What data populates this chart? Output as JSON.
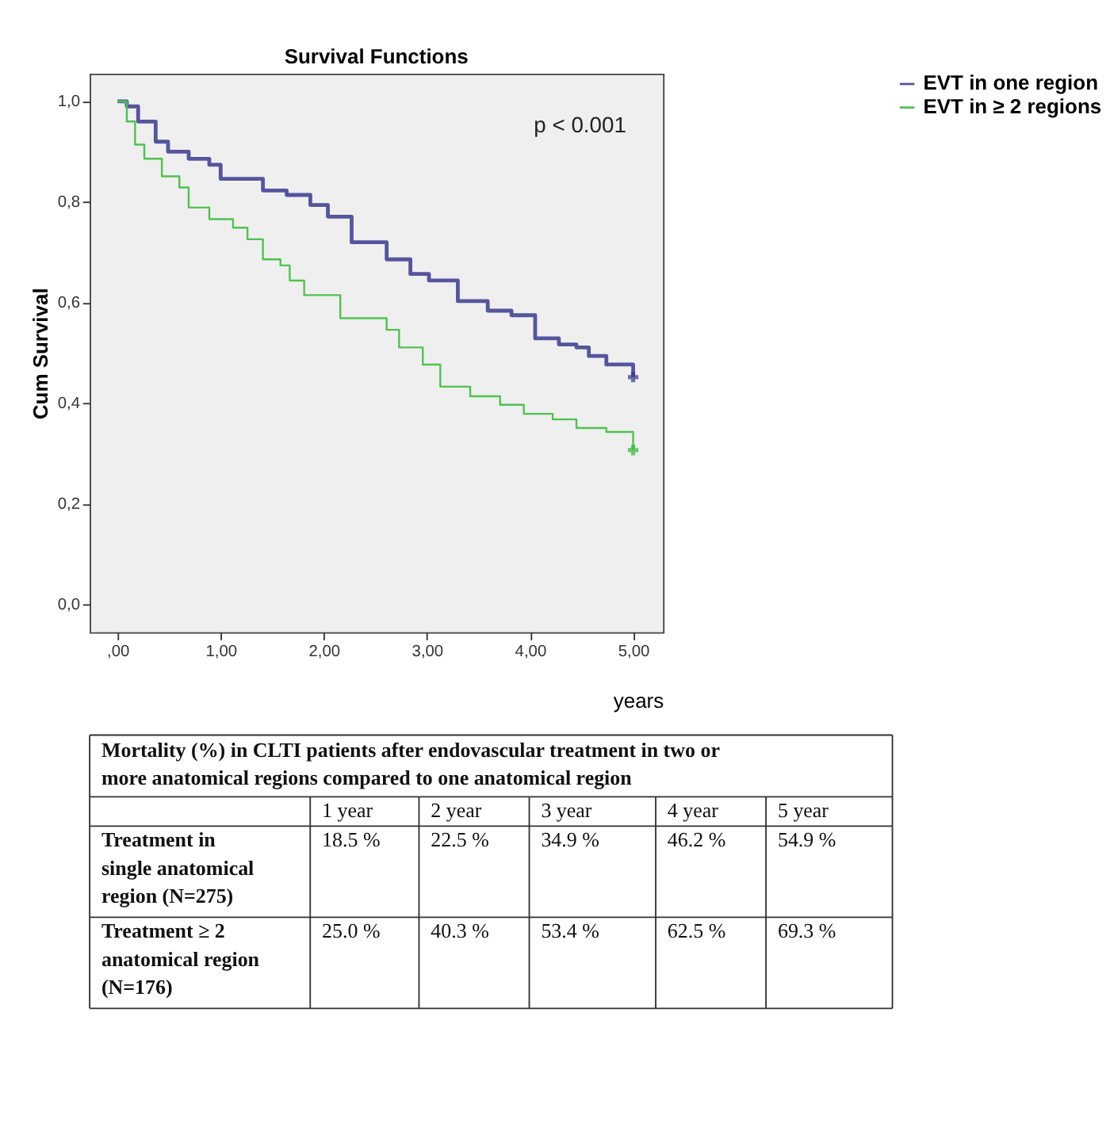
{
  "chart_data": [
    {
      "type": "step",
      "title": "Survival Functions",
      "xlabel": "years",
      "ylabel": "Cum Survival",
      "annotations": [
        "p < 0.001"
      ],
      "xlim": [
        -0.27,
        5.29
      ],
      "ylim": [
        -0.055,
        1.055
      ],
      "xticks": [
        {
          "value": 0,
          "label": ",00"
        },
        {
          "value": 1,
          "label": "1,00"
        },
        {
          "value": 2,
          "label": "2,00"
        },
        {
          "value": 3,
          "label": "3,00"
        },
        {
          "value": 4,
          "label": "4,00"
        },
        {
          "value": 5,
          "label": "5,00"
        }
      ],
      "yticks": [
        {
          "value": 0,
          "label": "0,0"
        },
        {
          "value": 0.2,
          "label": "0,2"
        },
        {
          "value": 0.4,
          "label": "0,4"
        },
        {
          "value": 0.6,
          "label": "0,6"
        },
        {
          "value": 0.8,
          "label": "0,8"
        },
        {
          "value": 1,
          "label": "1,0"
        }
      ],
      "grid": false,
      "legend": "top right",
      "marker": "none",
      "line_style": "solid",
      "series": [
        {
          "name": "EVT in one region",
          "color": "#55559e",
          "x": [
            0,
            0.09,
            0.2,
            0.37,
            0.49,
            0.69,
            0.89,
            1.0,
            1.24,
            1.41,
            1.64,
            1.87,
            2.04,
            2.27,
            2.61,
            2.84,
            3.02,
            3.3,
            3.59,
            3.82,
            4.05,
            4.28,
            4.45,
            4.57,
            4.74,
            5.0
          ],
          "values": [
            1.0,
            0.99,
            0.96,
            0.92,
            0.9,
            0.886,
            0.874,
            0.846,
            0.846,
            0.823,
            0.814,
            0.794,
            0.771,
            0.72,
            0.686,
            0.657,
            0.644,
            0.603,
            0.584,
            0.575,
            0.529,
            0.517,
            0.511,
            0.494,
            0.477,
            0.452
          ]
        },
        {
          "name": "EVT in ≥ 2 regions",
          "color": "#4fc34f",
          "x": [
            0,
            0.09,
            0.17,
            0.26,
            0.43,
            0.6,
            0.69,
            0.89,
            1.12,
            1.26,
            1.41,
            1.58,
            1.67,
            1.81,
            2.16,
            2.61,
            2.73,
            2.96,
            3.13,
            3.42,
            3.71,
            3.94,
            4.22,
            4.45,
            4.74,
            5.0
          ],
          "values": [
            1.0,
            0.96,
            0.914,
            0.886,
            0.851,
            0.829,
            0.789,
            0.766,
            0.749,
            0.726,
            0.686,
            0.674,
            0.644,
            0.615,
            0.569,
            0.546,
            0.511,
            0.477,
            0.433,
            0.414,
            0.397,
            0.379,
            0.368,
            0.351,
            0.343,
            0.307
          ]
        },
        {
          "type": "scatter",
          "marker": "cross",
          "color": "#33338a",
          "x": [
            5.0
          ],
          "values": [
            0.452
          ]
        },
        {
          "type": "scatter",
          "marker": "cross",
          "color": "#2fb82f",
          "x": [
            5.0
          ],
          "values": [
            0.307
          ]
        }
      ]
    },
    {
      "type": "heatmap",
      "title": "Mortality (%) in CLTI patients after endovascular treatment in two or more anatomical regions compared to one anatomical region",
      "categories": [
        "1 year",
        "2 year",
        "3 year",
        "4 year",
        "5 year"
      ],
      "y_categories": [
        "Treatment in single anatomical region (N=275)",
        "Treatment ≥ 2 anatomical region (N=176)"
      ],
      "cells": [
        [
          18.5,
          22.5,
          34.9,
          46.2,
          54.9
        ],
        [
          25.0,
          40.3,
          53.4,
          62.5,
          69.3
        ]
      ],
      "cell_labels": [
        [
          "18.5 %",
          "22.5 %",
          "34.9 %",
          "46.2 %",
          "54.9 %"
        ],
        [
          "25.0 %",
          "40.3 %",
          "53.4 %",
          "62.5 %",
          "69.3 %"
        ]
      ]
    }
  ]
}
